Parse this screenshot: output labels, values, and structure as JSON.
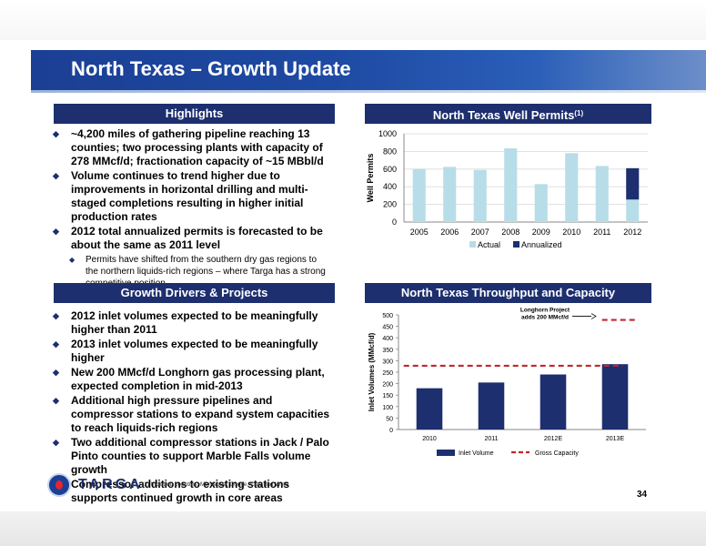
{
  "page": {
    "title": "North Texas – Growth Update",
    "page_number": "34",
    "footnote": "(1) Included counties: Montague, Cooke, Clay and Wise",
    "logo_text": "TARGA"
  },
  "highlights": {
    "header": "Highlights",
    "items": [
      "~4,200 miles of gathering pipeline reaching 13 counties; two processing plants with capacity of 278 MMcf/d; fractionation capacity of ~15 MBbl/d",
      "Volume continues to trend higher due to improvements in horizontal drilling and multi-staged completions resulting in higher initial production rates",
      "2012 total annualized permits is forecasted to be about the same as 2011 level"
    ],
    "sub_items": [
      "Permits have shifted from the southern dry gas regions to the northern liquids-rich regions – where Targa has a strong competitive position"
    ]
  },
  "growth": {
    "header": "Growth Drivers & Projects",
    "items": [
      "2012 inlet volumes expected to be meaningfully higher than 2011",
      "2013 inlet volumes expected to be meaningfully higher",
      "New 200 MMcf/d Longhorn gas processing plant, expected completion in mid-2013",
      "Additional high pressure pipelines and compressor stations to expand system capacities to reach liquids-rich regions",
      "Two additional compressor stations in Jack / Palo Pinto counties to support Marble Falls volume growth",
      "Compressor additions to existing stations supports continued growth in core areas"
    ]
  },
  "permits_header": {
    "text": "North Texas Well Permits",
    "sup": "(1)"
  },
  "throughput_header": {
    "text": "North Texas Throughput and Capacity"
  },
  "chart_data": [
    {
      "type": "bar",
      "stacked": true,
      "categories": [
        "2005",
        "2006",
        "2007",
        "2008",
        "2009",
        "2010",
        "2011",
        "2012"
      ],
      "series": [
        {
          "name": "Actual",
          "color": "#b7dde8",
          "values": [
            600,
            625,
            590,
            835,
            430,
            780,
            635,
            255
          ]
        },
        {
          "name": "Annualized",
          "color": "#1d2f6e",
          "values": [
            0,
            0,
            0,
            0,
            0,
            0,
            0,
            355
          ]
        }
      ],
      "ylabel": "Well Permits",
      "ylim": [
        0,
        1000
      ],
      "yticks": [
        "0",
        "200",
        "400",
        "600",
        "800",
        "1000"
      ],
      "grid": true,
      "legend": "bottom"
    },
    {
      "type": "bar",
      "categories": [
        "2010",
        "2011",
        "2012E",
        "2013E"
      ],
      "series": [
        {
          "name": "Inlet Volume",
          "color": "#1d2f6e",
          "values": [
            180,
            205,
            240,
            285
          ]
        },
        {
          "name": "Gross Capacity",
          "color": "#c0272d",
          "style": "dashed-line",
          "segments": [
            {
              "from": 0,
              "to": 3,
              "value": 278
            },
            {
              "from": 3,
              "to": 3,
              "value": 478
            }
          ]
        }
      ],
      "ylabel": "Inlet Volumes (MMcf/d)",
      "ylim": [
        0,
        500
      ],
      "yticks": [
        "0",
        "50",
        "100",
        "150",
        "200",
        "250",
        "300",
        "350",
        "400",
        "450",
        "500"
      ],
      "grid": false,
      "legend": "bottom",
      "annotation": {
        "line1": "Longhorn Project",
        "line2": "adds 200 MMcf/d"
      }
    }
  ]
}
